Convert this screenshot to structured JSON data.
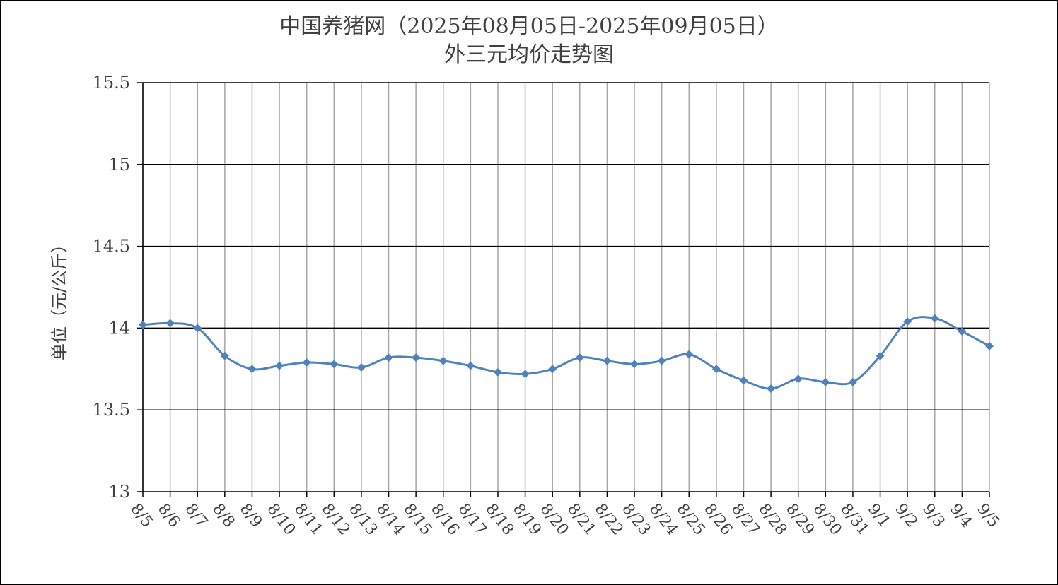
{
  "chart_data": {
    "type": "line",
    "title_line1": "中国养猪网（2025年08月05日-2025年09月05日）",
    "title_line2": "外三元均价走势图",
    "xlabel": "",
    "ylabel": "单位（元/公斤）",
    "ylim": [
      13,
      15.5
    ],
    "yticks": [
      13,
      13.5,
      14,
      14.5,
      15,
      15.5
    ],
    "ytick_labels": [
      "13",
      "13.5",
      "14",
      "14.5",
      "15",
      "15.5"
    ],
    "grid": true,
    "legend": "none",
    "series_color": "#4F81BD",
    "categories": [
      "8/5",
      "8/6",
      "8/7",
      "8/8",
      "8/9",
      "8/10",
      "8/11",
      "8/12",
      "8/13",
      "8/14",
      "8/15",
      "8/16",
      "8/17",
      "8/18",
      "8/19",
      "8/20",
      "8/21",
      "8/22",
      "8/23",
      "8/24",
      "8/25",
      "8/26",
      "8/27",
      "8/28",
      "8/29",
      "8/30",
      "8/31",
      "9/1",
      "9/2",
      "9/3",
      "9/4",
      "9/5"
    ],
    "series": [
      {
        "values": [
          14.02,
          14.03,
          14.0,
          13.83,
          13.75,
          13.77,
          13.79,
          13.78,
          13.76,
          13.82,
          13.82,
          13.8,
          13.77,
          13.73,
          13.72,
          13.75,
          13.82,
          13.8,
          13.78,
          13.8,
          13.84,
          13.75,
          13.68,
          13.63,
          13.69,
          13.67,
          13.67,
          13.83,
          14.04,
          14.06,
          13.98,
          13.89
        ]
      }
    ]
  }
}
